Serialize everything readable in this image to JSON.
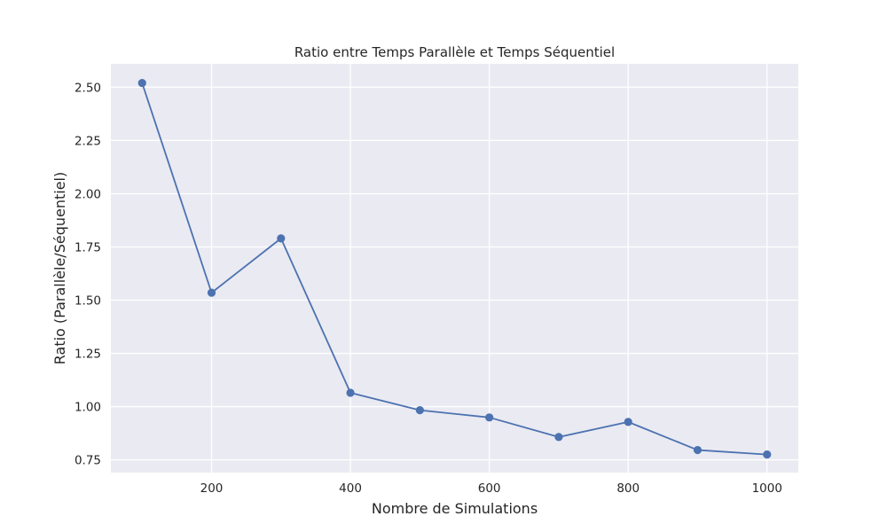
{
  "chart_data": {
    "type": "line",
    "title": "Ratio entre Temps Parallèle et Temps Séquentiel",
    "xlabel": "Nombre de Simulations",
    "ylabel": "Ratio (Parallèle/Séquentiel)",
    "x": [
      100,
      200,
      300,
      400,
      500,
      600,
      700,
      800,
      900,
      1000
    ],
    "series": [
      {
        "values": [
          2.52,
          1.535,
          1.79,
          1.065,
          0.983,
          0.949,
          0.857,
          0.928,
          0.796,
          0.775
        ]
      }
    ],
    "xlim": [
      55,
      1045
    ],
    "ylim": [
      0.69,
      2.61
    ],
    "xticks": [
      200,
      400,
      600,
      800,
      1000
    ],
    "xtick_labels": [
      "200",
      "400",
      "600",
      "800",
      "1000"
    ],
    "yticks": [
      0.75,
      1.0,
      1.25,
      1.5,
      1.75,
      2.0,
      2.25,
      2.5
    ],
    "ytick_labels": [
      "0.75",
      "1.00",
      "1.25",
      "1.50",
      "1.75",
      "2.00",
      "2.25",
      "2.50"
    ],
    "grid": true,
    "legend": "none",
    "colors": {
      "line": "#4c72b0",
      "plot_background": "#eaeaf2",
      "grid": "#ffffff"
    }
  }
}
